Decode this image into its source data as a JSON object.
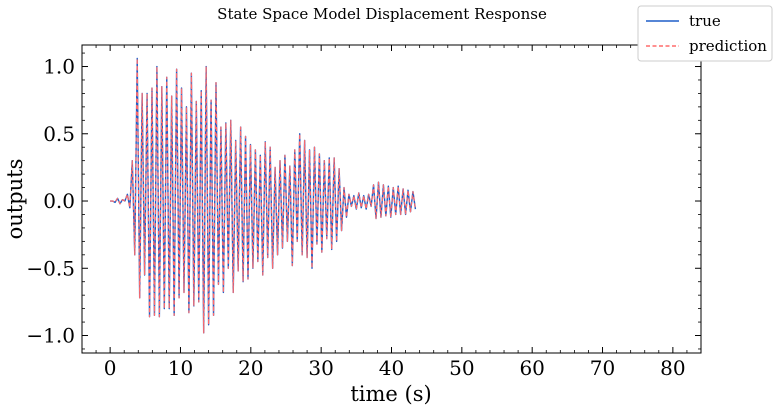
{
  "chart_data": {
    "type": "line",
    "title": "State Space Model Displacement Response",
    "xlabel": "time (s)",
    "ylabel": "outputs",
    "xlim": [
      -4,
      84
    ],
    "ylim": [
      -1.13,
      1.16
    ],
    "xticks": [
      0,
      10,
      20,
      30,
      40,
      50,
      60,
      70,
      80
    ],
    "xtick_labels": [
      "0",
      "10",
      "20",
      "30",
      "40",
      "50",
      "60",
      "70",
      "80"
    ],
    "yticks": [
      -1.0,
      -0.5,
      0.0,
      0.5,
      1.0
    ],
    "ytick_labels": [
      "−1.0",
      "−0.5",
      "0.0",
      "0.5",
      "1.0"
    ],
    "grid": false,
    "legend_position": "top-right",
    "sample_interval_s": 0.35,
    "series": [
      {
        "name": "true",
        "color": "#1f5fc8",
        "style": "solid",
        "y": [
          0.0,
          0.0,
          -0.01,
          0.02,
          -0.02,
          0.01,
          0.0,
          0.05,
          -0.05,
          0.3,
          -0.4,
          1.06,
          -0.72,
          0.8,
          -0.55,
          0.8,
          -0.86,
          0.84,
          -0.85,
          1.0,
          -0.86,
          0.85,
          -0.8,
          0.92,
          -0.8,
          0.78,
          -0.85,
          0.98,
          -0.72,
          0.84,
          -0.68,
          0.7,
          -0.83,
          0.95,
          -0.78,
          0.74,
          -0.75,
          0.82,
          -0.98,
          1.0,
          -0.92,
          0.75,
          -0.85,
          0.88,
          -0.62,
          0.55,
          -0.68,
          0.58,
          -0.5,
          0.6,
          -0.68,
          0.45,
          -0.52,
          0.55,
          -0.6,
          0.48,
          -0.58,
          0.42,
          -0.5,
          0.38,
          -0.45,
          0.34,
          -0.55,
          0.44,
          -0.42,
          0.4,
          -0.5,
          0.25,
          -0.4,
          0.3,
          -0.35,
          0.34,
          -0.3,
          0.26,
          -0.48,
          0.38,
          -0.3,
          0.5,
          -0.4,
          0.45,
          -0.42,
          0.38,
          -0.5,
          0.4,
          -0.32,
          0.35,
          -0.38,
          0.3,
          -0.28,
          0.32,
          -0.36,
          0.32,
          -0.3,
          0.24,
          -0.22,
          0.1,
          -0.12,
          0.05,
          -0.04,
          0.04,
          -0.06,
          0.06,
          -0.05,
          0.04,
          -0.06,
          0.05,
          -0.04,
          0.12,
          -0.13,
          0.14,
          -0.12,
          0.12,
          -0.11,
          0.11,
          -0.12,
          0.1,
          -0.1,
          0.11,
          -0.1,
          0.09,
          -0.1,
          0.08,
          -0.08,
          0.07,
          -0.06
        ]
      },
      {
        "name": "prediction",
        "color": "#ff6b6b",
        "style": "dashed",
        "y": [
          0.0,
          0.0,
          -0.01,
          0.02,
          -0.02,
          0.01,
          0.0,
          0.05,
          -0.05,
          0.3,
          -0.4,
          1.06,
          -0.72,
          0.8,
          -0.55,
          0.8,
          -0.86,
          0.84,
          -0.85,
          1.0,
          -0.86,
          0.85,
          -0.8,
          0.92,
          -0.8,
          0.78,
          -0.85,
          0.98,
          -0.72,
          0.84,
          -0.68,
          0.7,
          -0.83,
          0.95,
          -0.78,
          0.74,
          -0.75,
          0.82,
          -0.98,
          1.0,
          -0.92,
          0.75,
          -0.85,
          0.88,
          -0.62,
          0.55,
          -0.68,
          0.58,
          -0.5,
          0.6,
          -0.68,
          0.45,
          -0.52,
          0.55,
          -0.6,
          0.48,
          -0.58,
          0.42,
          -0.5,
          0.38,
          -0.45,
          0.34,
          -0.55,
          0.44,
          -0.42,
          0.4,
          -0.5,
          0.25,
          -0.4,
          0.3,
          -0.35,
          0.34,
          -0.3,
          0.26,
          -0.48,
          0.38,
          -0.3,
          0.5,
          -0.4,
          0.45,
          -0.42,
          0.38,
          -0.5,
          0.4,
          -0.32,
          0.35,
          -0.38,
          0.3,
          -0.28,
          0.32,
          -0.36,
          0.32,
          -0.3,
          0.24,
          -0.22,
          0.1,
          -0.12,
          0.05,
          -0.04,
          0.04,
          -0.06,
          0.06,
          -0.05,
          0.04,
          -0.06,
          0.05,
          -0.04,
          0.12,
          -0.13,
          0.14,
          -0.12,
          0.12,
          -0.11,
          0.11,
          -0.12,
          0.1,
          -0.1,
          0.11,
          -0.1,
          0.09,
          -0.1,
          0.08,
          -0.08,
          0.07,
          -0.06
        ]
      }
    ]
  }
}
